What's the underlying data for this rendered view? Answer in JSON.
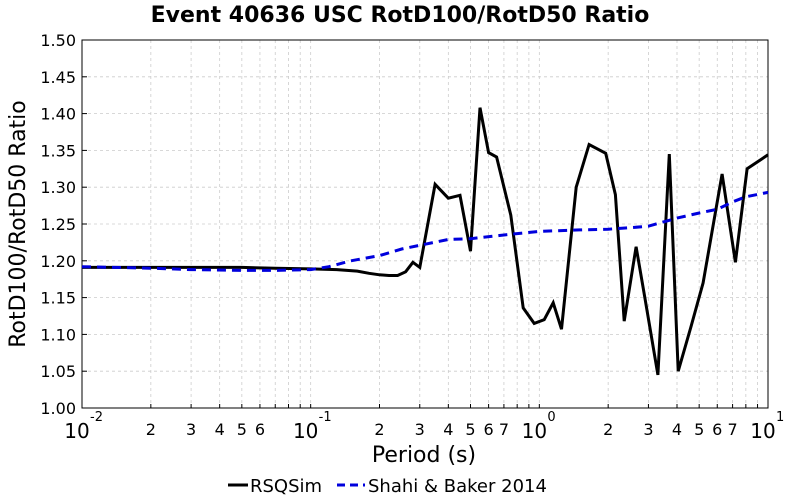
{
  "chart_data": {
    "type": "line",
    "title": "Event 40636 USC RotD100/RotD50 Ratio",
    "xlabel": "Period (s)",
    "ylabel": "RotD100/RotD50 Ratio",
    "x_scale": "log",
    "xlim": [
      0.01,
      10
    ],
    "ylim": [
      1.0,
      1.5
    ],
    "grid": true,
    "legend_position": "bottom",
    "y_ticks": [
      "1.00",
      "1.05",
      "1.10",
      "1.15",
      "1.20",
      "1.25",
      "1.30",
      "1.35",
      "1.40",
      "1.45",
      "1.50"
    ],
    "x_major_ticks": [
      {
        "value": 0.01,
        "base": "10",
        "exp": "-2"
      },
      {
        "value": 0.1,
        "base": "10",
        "exp": "-1"
      },
      {
        "value": 1,
        "base": "10",
        "exp": "0"
      },
      {
        "value": 10,
        "base": "10",
        "exp": "1"
      }
    ],
    "x_minor_ticks": [
      {
        "value": 0.02,
        "label": "2"
      },
      {
        "value": 0.03,
        "label": "3"
      },
      {
        "value": 0.04,
        "label": "4"
      },
      {
        "value": 0.05,
        "label": "5"
      },
      {
        "value": 0.06,
        "label": "6"
      },
      {
        "value": 0.2,
        "label": "2"
      },
      {
        "value": 0.3,
        "label": "3"
      },
      {
        "value": 0.4,
        "label": "4"
      },
      {
        "value": 0.5,
        "label": "5"
      },
      {
        "value": 0.6,
        "label": "6"
      },
      {
        "value": 0.7,
        "label": "7"
      },
      {
        "value": 2,
        "label": "2"
      },
      {
        "value": 3,
        "label": "3"
      },
      {
        "value": 4,
        "label": "4"
      },
      {
        "value": 5,
        "label": "5"
      },
      {
        "value": 6,
        "label": "6"
      },
      {
        "value": 7,
        "label": "7"
      }
    ],
    "x_minor_unlabeled": [
      0.07,
      0.08,
      0.09,
      0.8,
      0.9,
      8,
      9
    ],
    "series": [
      {
        "name": "RSQSim",
        "color": "#000000",
        "dash": "solid",
        "points": [
          [
            0.01,
            1.191
          ],
          [
            0.015,
            1.191
          ],
          [
            0.02,
            1.191
          ],
          [
            0.03,
            1.191
          ],
          [
            0.05,
            1.191
          ],
          [
            0.07,
            1.19
          ],
          [
            0.1,
            1.189
          ],
          [
            0.13,
            1.188
          ],
          [
            0.16,
            1.186
          ],
          [
            0.18,
            1.183
          ],
          [
            0.2,
            1.181
          ],
          [
            0.22,
            1.18
          ],
          [
            0.24,
            1.18
          ],
          [
            0.26,
            1.185
          ],
          [
            0.28,
            1.198
          ],
          [
            0.3,
            1.191
          ],
          [
            0.35,
            1.304
          ],
          [
            0.4,
            1.285
          ],
          [
            0.45,
            1.289
          ],
          [
            0.5,
            1.213
          ],
          [
            0.55,
            1.408
          ],
          [
            0.6,
            1.347
          ],
          [
            0.65,
            1.341
          ],
          [
            0.75,
            1.262
          ],
          [
            0.85,
            1.136
          ],
          [
            0.95,
            1.115
          ],
          [
            1.05,
            1.12
          ],
          [
            1.15,
            1.143
          ],
          [
            1.25,
            1.107
          ],
          [
            1.45,
            1.3
          ],
          [
            1.65,
            1.358
          ],
          [
            1.95,
            1.346
          ],
          [
            2.15,
            1.29
          ],
          [
            2.35,
            1.118
          ],
          [
            2.65,
            1.219
          ],
          [
            2.9,
            1.148
          ],
          [
            3.3,
            1.045
          ],
          [
            3.7,
            1.345
          ],
          [
            4.05,
            1.05
          ],
          [
            4.6,
            1.11
          ],
          [
            5.2,
            1.17
          ],
          [
            6.3,
            1.318
          ],
          [
            7.2,
            1.198
          ],
          [
            8.1,
            1.325
          ],
          [
            10,
            1.344
          ]
        ]
      },
      {
        "name": "Shahi & Baker 2014",
        "color": "#0000dd",
        "dash": "dashed",
        "points": [
          [
            0.01,
            1.192
          ],
          [
            0.02,
            1.19
          ],
          [
            0.03,
            1.188
          ],
          [
            0.05,
            1.187
          ],
          [
            0.07,
            1.187
          ],
          [
            0.1,
            1.188
          ],
          [
            0.12,
            1.192
          ],
          [
            0.15,
            1.2
          ],
          [
            0.2,
            1.207
          ],
          [
            0.25,
            1.216
          ],
          [
            0.3,
            1.221
          ],
          [
            0.4,
            1.229
          ],
          [
            0.5,
            1.23
          ],
          [
            0.7,
            1.235
          ],
          [
            1,
            1.24
          ],
          [
            1.5,
            1.242
          ],
          [
            2,
            1.243
          ],
          [
            2.5,
            1.245
          ],
          [
            3,
            1.247
          ],
          [
            4,
            1.258
          ],
          [
            5,
            1.265
          ],
          [
            6,
            1.27
          ],
          [
            7,
            1.28
          ],
          [
            8,
            1.287
          ],
          [
            10,
            1.293
          ]
        ]
      }
    ]
  }
}
